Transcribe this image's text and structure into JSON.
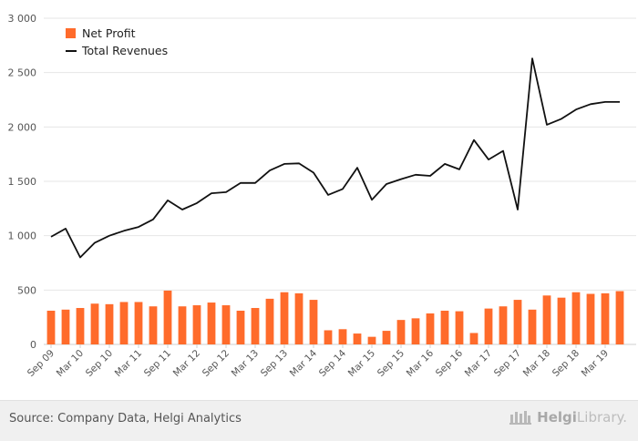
{
  "chart_data": {
    "type": "bar+line",
    "title": "",
    "xlabel": "",
    "ylabel": "",
    "ylim": [
      0,
      3000
    ],
    "yticks": [
      0,
      500,
      1000,
      1500,
      2000,
      2500,
      3000
    ],
    "ytick_labels": [
      "0",
      "500",
      "1 000",
      "1 500",
      "2 000",
      "2 500",
      "3 000"
    ],
    "grid": true,
    "legend_position": "top-left",
    "categories": [
      "Sep 09",
      "Dec 09",
      "Mar 10",
      "Jun 10",
      "Sep 10",
      "Dec 10",
      "Mar 11",
      "Jun 11",
      "Sep 11",
      "Dec 11",
      "Mar 12",
      "Jun 12",
      "Sep 12",
      "Dec 12",
      "Mar 13",
      "Jun 13",
      "Sep 13",
      "Dec 13",
      "Mar 14",
      "Jun 14",
      "Sep 14",
      "Dec 14",
      "Mar 15",
      "Jun 15",
      "Sep 15",
      "Dec 15",
      "Mar 16",
      "Jun 16",
      "Sep 16",
      "Dec 16",
      "Mar 17",
      "Jun 17",
      "Sep 17",
      "Dec 17",
      "Mar 18",
      "Jun 18",
      "Sep 18",
      "Dec 18",
      "Mar 19",
      "Jun 19"
    ],
    "xtick_labels": [
      "Sep 09",
      "Mar 10",
      "Sep 10",
      "Mar 11",
      "Sep 11",
      "Mar 12",
      "Sep 12",
      "Mar 13",
      "Sep 13",
      "Mar 14",
      "Sep 14",
      "Mar 15",
      "Sep 15",
      "Mar 16",
      "Sep 16",
      "Mar 17",
      "Sep 17",
      "Mar 18",
      "Sep 18",
      "Mar 19"
    ],
    "series": [
      {
        "name": "Net Profit",
        "kind": "bar",
        "color": "#ff6b2b",
        "values": [
          310,
          320,
          335,
          375,
          370,
          390,
          390,
          350,
          495,
          350,
          360,
          385,
          360,
          310,
          335,
          420,
          480,
          470,
          410,
          130,
          140,
          100,
          70,
          125,
          225,
          240,
          285,
          310,
          305,
          105,
          330,
          350,
          410,
          320,
          450,
          430,
          480,
          465,
          470,
          490
        ]
      },
      {
        "name": "Total Revenues",
        "kind": "line",
        "color": "#111111",
        "values": [
          990,
          1065,
          800,
          935,
          1000,
          1045,
          1080,
          1150,
          1325,
          1240,
          1300,
          1390,
          1400,
          1485,
          1485,
          1600,
          1660,
          1665,
          1580,
          1375,
          1430,
          1625,
          1330,
          1475,
          1520,
          1560,
          1550,
          1660,
          1610,
          1880,
          1700,
          1780,
          1240,
          2630,
          2020,
          2075,
          2160,
          2210,
          2230,
          2230
        ]
      }
    ]
  },
  "footer": {
    "source_text": "Source: Company Data, Helgi Analytics",
    "logo_text_a": "Helgi",
    "logo_text_b": "Library."
  }
}
